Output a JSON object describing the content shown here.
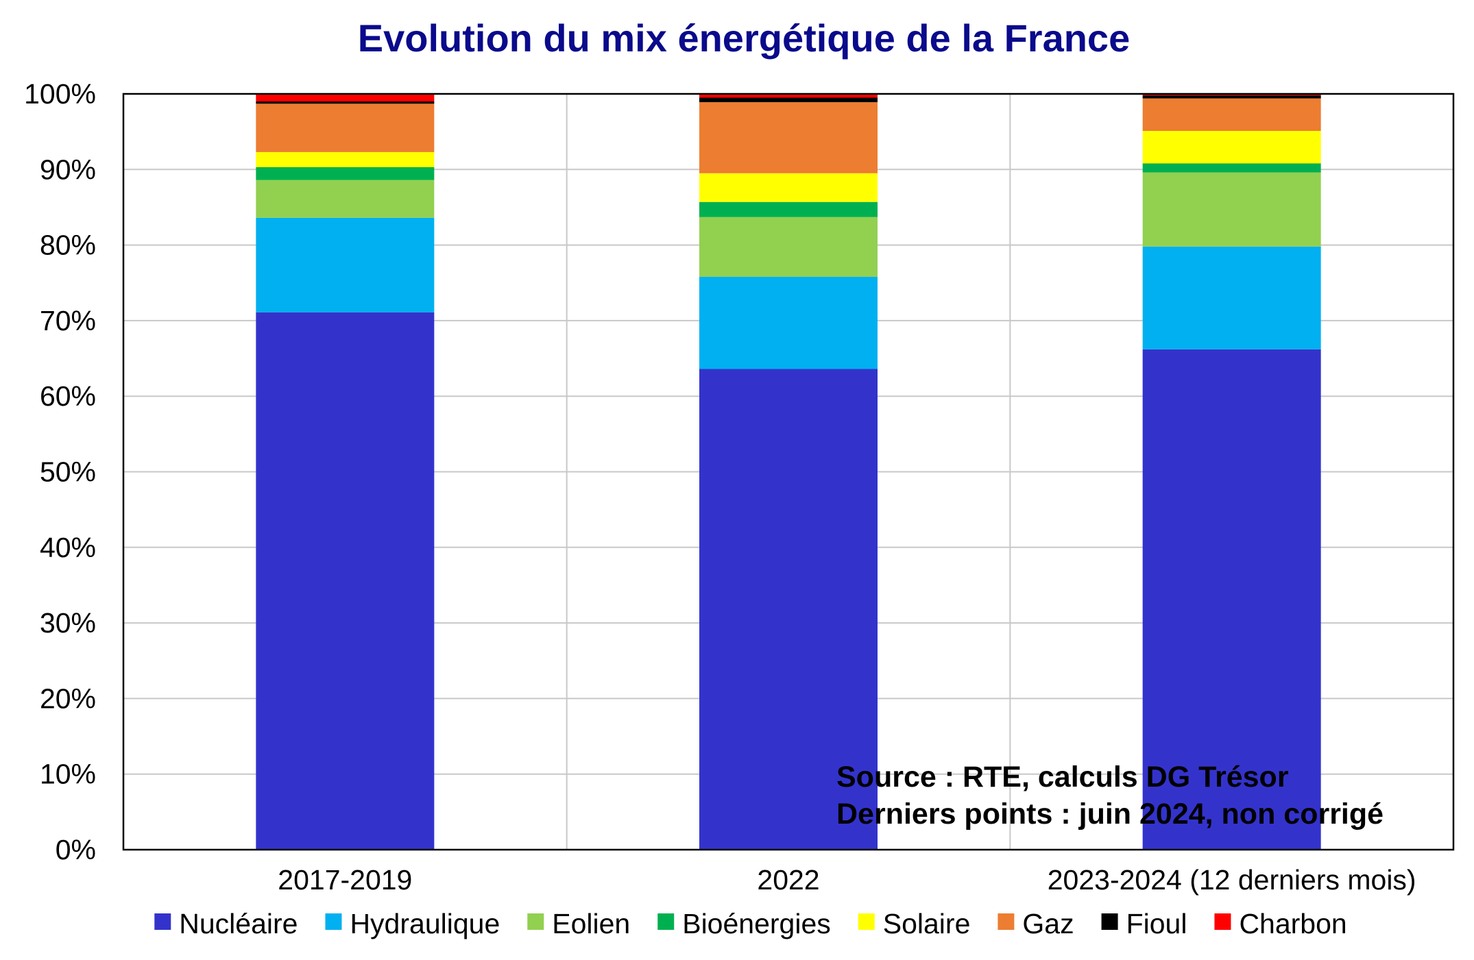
{
  "chart_data": {
    "type": "bar",
    "stacked": true,
    "title": "Evolution du mix énergétique de la France",
    "categories": [
      "2017-2019",
      "2022",
      "2023-2024 (12 derniers mois)"
    ],
    "ylim": [
      0,
      100
    ],
    "yticks": [
      "0%",
      "10%",
      "20%",
      "30%",
      "40%",
      "50%",
      "60%",
      "70%",
      "80%",
      "90%",
      "100%"
    ],
    "grid": true,
    "legend_position": "bottom",
    "series": [
      {
        "name": "Nucléaire",
        "color": "#3333cc",
        "values": [
          71.1,
          63.6,
          66.2
        ]
      },
      {
        "name": "Hydraulique",
        "color": "#00b0f0",
        "values": [
          12.5,
          12.2,
          13.6
        ]
      },
      {
        "name": "Eolien",
        "color": "#92d050",
        "values": [
          5.0,
          7.9,
          9.8
        ]
      },
      {
        "name": "Bioénergies",
        "color": "#00b050",
        "values": [
          1.7,
          2.0,
          1.2
        ]
      },
      {
        "name": "Solaire",
        "color": "#ffff00",
        "values": [
          2.0,
          3.8,
          4.3
        ]
      },
      {
        "name": "Gaz",
        "color": "#ed7d31",
        "values": [
          6.4,
          9.4,
          4.3
        ]
      },
      {
        "name": "Fioul",
        "color": "#000000",
        "values": [
          0.3,
          0.6,
          0.4
        ]
      },
      {
        "name": "Charbon",
        "color": "#ff0000",
        "values": [
          1.0,
          0.5,
          0.2
        ]
      }
    ],
    "annotations": [
      "Source : RTE, calculs DG Trésor",
      "Derniers points : juin 2024, non corrigé"
    ]
  }
}
